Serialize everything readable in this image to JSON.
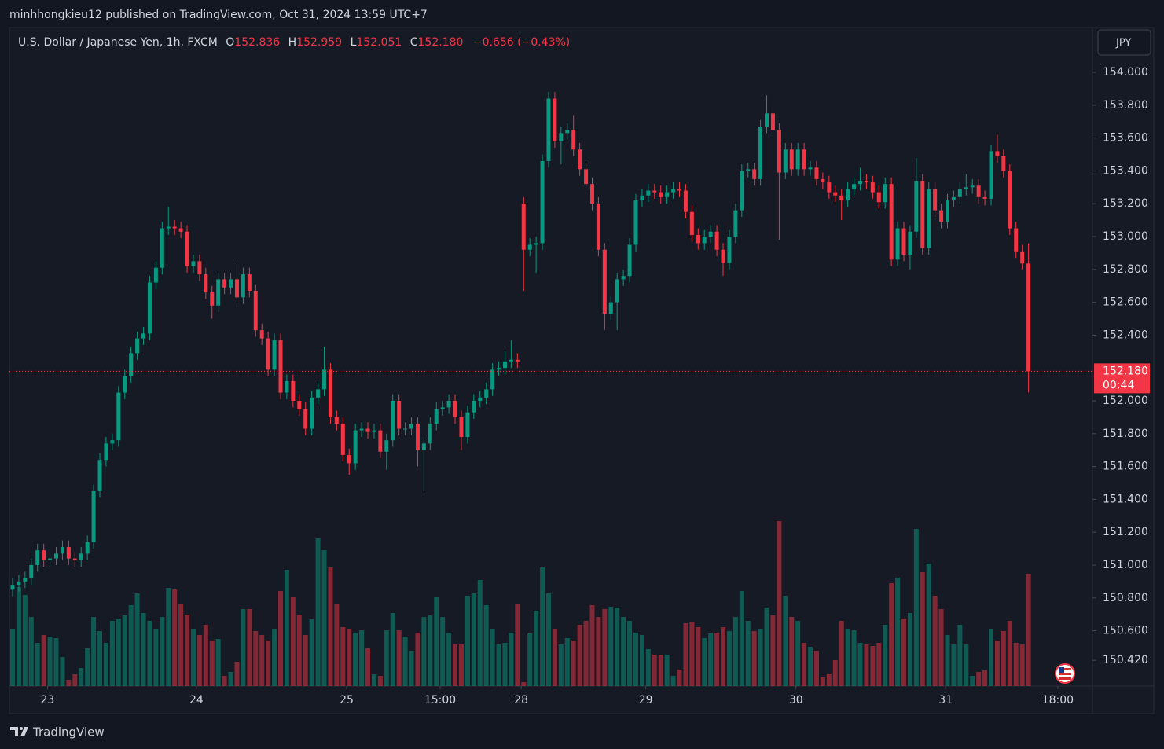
{
  "header": {
    "publisher_line": "minhhongkieu12 published on TradingView.com, Oct 31, 2024 13:59 UTC+7"
  },
  "chart_data": {
    "type": "candlestick",
    "title": "U.S. Dollar / Japanese Yen, 1h, FXCM",
    "legend_values": {
      "o_key": "O",
      "o": "152.836",
      "h_key": "H",
      "h": "152.959",
      "l_key": "L",
      "l": "152.051",
      "c_key": "C",
      "c": "152.180",
      "change": "−0.656 (−0.43%)"
    },
    "currency": "JPY",
    "open": [
      150.85,
      150.88,
      150.9,
      150.92,
      151.0,
      151.09,
      151.03,
      151.04,
      151.07,
      151.11,
      151.04,
      151.03,
      151.07,
      151.14,
      151.45,
      151.64,
      151.74,
      151.76,
      152.05,
      152.15,
      152.29,
      152.38,
      152.41,
      152.72,
      152.81,
      153.05,
      153.06,
      153.05,
      153.03,
      152.82,
      152.85,
      152.77,
      152.66,
      152.58,
      152.74,
      152.69,
      152.74,
      152.63,
      152.77,
      152.67,
      152.43,
      152.38,
      152.19,
      152.37,
      152.05,
      152.12,
      152.0,
      151.95,
      151.83,
      152.02,
      152.07,
      152.19,
      151.9,
      151.86,
      151.67,
      151.62,
      151.82,
      151.83,
      151.81,
      151.82,
      151.69,
      151.76,
      152.0,
      151.83,
      151.83,
      151.86,
      151.7,
      151.74,
      151.86,
      151.95,
      151.96,
      152.0,
      151.9,
      151.78,
      151.93,
      152.0,
      152.02,
      152.07,
      152.19,
      152.2,
      152.24,
      152.25,
      153.2,
      152.92,
      152.95,
      152.96,
      153.46,
      153.84,
      153.58,
      153.63,
      153.65,
      153.53,
      153.41,
      153.32,
      153.2,
      152.92,
      152.53,
      152.6,
      152.74,
      152.76,
      152.95,
      153.22,
      153.25,
      153.28,
      153.27,
      153.24,
      153.27,
      153.29,
      153.28,
      153.15,
      153.01,
      152.96,
      153.0,
      153.03,
      152.92,
      152.84,
      153.0,
      153.16,
      153.4,
      153.41,
      153.35,
      153.67,
      153.75,
      153.65,
      153.39,
      153.53,
      153.41,
      153.53,
      153.41,
      153.42,
      153.35,
      153.33,
      153.27,
      153.25,
      153.22,
      153.29,
      153.32,
      153.34,
      153.33,
      153.27,
      153.21,
      153.32,
      152.86,
      153.05,
      152.89,
      153.03,
      153.34,
      152.93,
      153.29,
      153.16,
      153.09,
      153.22,
      153.24,
      153.29,
      153.3,
      153.31,
      153.24,
      153.23,
      153.52,
      153.49,
      153.4,
      153.05,
      152.91,
      152.836
    ],
    "high": [
      150.92,
      150.94,
      150.96,
      151.04,
      151.13,
      151.13,
      151.08,
      151.11,
      151.15,
      151.15,
      151.08,
      151.11,
      151.18,
      151.49,
      151.68,
      151.78,
      151.8,
      152.09,
      152.19,
      152.33,
      152.42,
      152.45,
      152.76,
      152.85,
      153.09,
      153.18,
      153.1,
      153.09,
      153.07,
      152.89,
      152.89,
      152.81,
      152.7,
      152.78,
      152.78,
      152.78,
      152.84,
      152.81,
      152.81,
      152.71,
      152.47,
      152.42,
      152.41,
      152.41,
      152.16,
      152.16,
      152.04,
      151.99,
      152.06,
      152.11,
      152.33,
      152.23,
      151.94,
      151.9,
      151.71,
      151.86,
      151.87,
      151.87,
      151.86,
      151.86,
      151.8,
      152.04,
      152.04,
      151.87,
      151.9,
      151.9,
      151.78,
      151.9,
      151.99,
      152.0,
      152.04,
      152.04,
      151.94,
      151.97,
      152.04,
      152.06,
      152.11,
      152.23,
      152.24,
      152.3,
      152.37,
      152.29,
      153.24,
      152.99,
      153.0,
      153.5,
      153.88,
      153.88,
      153.67,
      153.69,
      153.74,
      153.57,
      153.45,
      153.36,
      153.24,
      152.96,
      152.64,
      152.78,
      152.8,
      152.99,
      153.26,
      153.29,
      153.32,
      153.32,
      153.31,
      153.31,
      153.33,
      153.33,
      153.32,
      153.19,
      153.05,
      153.04,
      153.07,
      153.07,
      152.96,
      153.04,
      153.2,
      153.44,
      153.45,
      153.45,
      153.71,
      153.86,
      153.79,
      153.69,
      153.57,
      153.57,
      153.57,
      153.57,
      153.46,
      153.46,
      153.39,
      153.37,
      153.31,
      153.29,
      153.33,
      153.36,
      153.42,
      153.38,
      153.37,
      153.31,
      153.36,
      153.36,
      153.09,
      153.09,
      153.07,
      153.48,
      153.38,
      153.33,
      153.33,
      153.2,
      153.26,
      153.28,
      153.33,
      153.38,
      153.35,
      153.35,
      153.28,
      153.56,
      153.62,
      153.53,
      153.44,
      153.09,
      152.95,
      152.959
    ],
    "low": [
      150.81,
      150.84,
      150.86,
      150.88,
      150.96,
      150.99,
      150.99,
      151.0,
      151.03,
      151.0,
      150.99,
      150.99,
      151.03,
      151.1,
      151.41,
      151.6,
      151.7,
      151.72,
      152.01,
      152.11,
      152.25,
      152.34,
      152.37,
      152.68,
      152.77,
      153.01,
      153.01,
      152.99,
      152.78,
      152.78,
      152.73,
      152.62,
      152.5,
      152.54,
      152.65,
      152.65,
      152.59,
      152.59,
      152.63,
      152.39,
      152.34,
      152.15,
      152.15,
      152.01,
      152.01,
      151.96,
      151.91,
      151.79,
      151.79,
      151.98,
      152.03,
      151.86,
      151.82,
      151.63,
      151.55,
      151.58,
      151.78,
      151.77,
      151.77,
      151.65,
      151.58,
      151.72,
      151.79,
      151.79,
      151.79,
      151.6,
      151.45,
      151.7,
      151.82,
      151.91,
      151.92,
      151.86,
      151.7,
      151.74,
      151.89,
      151.96,
      151.98,
      152.03,
      152.15,
      152.16,
      152.2,
      152.2,
      152.67,
      152.88,
      152.78,
      152.92,
      153.42,
      153.54,
      153.44,
      153.59,
      153.49,
      153.37,
      153.28,
      153.16,
      152.88,
      152.43,
      152.49,
      152.43,
      152.7,
      152.72,
      152.91,
      153.18,
      153.21,
      153.23,
      153.2,
      153.2,
      153.23,
      153.24,
      153.11,
      152.97,
      152.92,
      152.92,
      152.96,
      152.88,
      152.76,
      152.8,
      152.96,
      153.12,
      153.36,
      153.31,
      153.31,
      153.63,
      153.61,
      152.98,
      153.35,
      153.37,
      153.37,
      153.37,
      153.37,
      153.31,
      153.29,
      153.23,
      153.21,
      153.1,
      153.18,
      153.25,
      153.28,
      153.29,
      153.23,
      153.17,
      153.17,
      152.82,
      152.82,
      152.85,
      152.8,
      152.99,
      152.89,
      152.89,
      153.12,
      153.05,
      153.05,
      153.18,
      153.2,
      153.25,
      153.26,
      153.2,
      153.19,
      153.19,
      153.45,
      153.36,
      153.01,
      152.87,
      152.8,
      152.051
    ],
    "close": [
      150.88,
      150.9,
      150.92,
      151.0,
      151.09,
      151.03,
      151.04,
      151.07,
      151.11,
      151.04,
      151.03,
      151.07,
      151.14,
      151.45,
      151.64,
      151.74,
      151.76,
      152.05,
      152.15,
      152.29,
      152.38,
      152.41,
      152.72,
      152.81,
      153.05,
      153.06,
      153.05,
      153.03,
      152.82,
      152.85,
      152.77,
      152.66,
      152.58,
      152.74,
      152.69,
      152.74,
      152.63,
      152.77,
      152.67,
      152.43,
      152.38,
      152.19,
      152.37,
      152.05,
      152.12,
      152.0,
      151.95,
      151.83,
      152.02,
      152.07,
      152.19,
      151.9,
      151.86,
      151.67,
      151.62,
      151.82,
      151.83,
      151.81,
      151.82,
      151.69,
      151.76,
      152.0,
      151.83,
      151.83,
      151.86,
      151.7,
      151.74,
      151.86,
      151.95,
      151.96,
      152.0,
      151.9,
      151.78,
      151.93,
      152.0,
      152.02,
      152.07,
      152.19,
      152.2,
      152.24,
      152.25,
      152.24,
      152.92,
      152.95,
      152.96,
      153.46,
      153.84,
      153.58,
      153.63,
      153.65,
      153.53,
      153.41,
      153.32,
      153.2,
      152.92,
      152.53,
      152.6,
      152.74,
      152.76,
      152.95,
      153.22,
      153.25,
      153.28,
      153.27,
      153.24,
      153.27,
      153.29,
      153.28,
      153.15,
      153.01,
      152.96,
      153.0,
      153.03,
      152.92,
      152.84,
      153.0,
      153.16,
      153.4,
      153.41,
      153.35,
      153.67,
      153.75,
      153.65,
      153.39,
      153.53,
      153.41,
      153.53,
      153.41,
      153.42,
      153.35,
      153.33,
      153.27,
      153.25,
      153.22,
      153.29,
      153.32,
      153.34,
      153.33,
      153.27,
      153.21,
      153.32,
      152.86,
      153.05,
      152.89,
      153.03,
      153.34,
      152.93,
      153.29,
      153.16,
      153.09,
      153.22,
      153.24,
      153.29,
      153.3,
      153.31,
      153.24,
      153.23,
      153.52,
      153.49,
      153.4,
      153.05,
      152.91,
      152.836,
      152.18
    ],
    "volume": [
      73,
      126,
      116,
      88,
      55,
      65,
      63,
      61,
      37,
      8,
      15,
      23,
      48,
      88,
      70,
      55,
      83,
      86,
      90,
      103,
      118,
      93,
      83,
      73,
      88,
      125,
      123,
      105,
      91,
      73,
      65,
      78,
      58,
      60,
      13,
      18,
      31,
      98,
      98,
      70,
      65,
      58,
      73,
      121,
      148,
      113,
      91,
      65,
      85,
      188,
      173,
      151,
      105,
      75,
      73,
      68,
      71,
      48,
      15,
      13,
      71,
      93,
      71,
      63,
      45,
      68,
      88,
      90,
      113,
      88,
      68,
      53,
      53,
      115,
      118,
      135,
      103,
      73,
      53,
      55,
      68,
      105,
      5,
      67,
      96,
      151,
      118,
      73,
      53,
      61,
      58,
      78,
      83,
      103,
      88,
      98,
      101,
      100,
      88,
      83,
      68,
      65,
      47,
      40,
      40,
      40,
      13,
      21,
      80,
      81,
      75,
      61,
      67,
      68,
      75,
      70,
      88,
      121,
      83,
      70,
      73,
      100,
      90,
      210,
      115,
      88,
      83,
      55,
      50,
      45,
      11,
      16,
      33,
      83,
      73,
      71,
      55,
      53,
      51,
      55,
      78,
      131,
      138,
      86,
      93,
      200,
      145,
      156,
      115,
      98,
      65,
      53,
      78,
      53,
      13,
      18,
      20,
      73,
      58,
      70,
      83,
      55,
      53,
      143
    ],
    "up_color": "#089981",
    "down_color": "#f23645",
    "ylim": [
      150.263,
      154.273
    ],
    "yticks": [
      {
        "value": 154,
        "label": "154.000"
      },
      {
        "value": 153.8,
        "label": "153.800"
      },
      {
        "value": 153.6,
        "label": "153.600"
      },
      {
        "value": 153.4,
        "label": "153.400"
      },
      {
        "value": 153.2,
        "label": "153.200"
      },
      {
        "value": 153,
        "label": "153.000"
      },
      {
        "value": 152.8,
        "label": "152.800"
      },
      {
        "value": 152.6,
        "label": "152.600"
      },
      {
        "value": 152.4,
        "label": "152.400"
      },
      {
        "value": 152,
        "label": "152.000"
      },
      {
        "value": 151.8,
        "label": "151.800"
      },
      {
        "value": 151.6,
        "label": "151.600"
      },
      {
        "value": 151.4,
        "label": "151.400"
      },
      {
        "value": 151.2,
        "label": "151.200"
      },
      {
        "value": 151,
        "label": "151.000"
      },
      {
        "value": 150.8,
        "label": "150.800"
      },
      {
        "value": 150.6,
        "label": "150.600"
      },
      {
        "value": 150.42,
        "label": "150.420"
      }
    ],
    "xticks": [
      {
        "value": 5.6,
        "label": "23"
      },
      {
        "value": 29.5,
        "label": "24"
      },
      {
        "value": 53.6,
        "label": "25"
      },
      {
        "value": 68.6,
        "label": "15:00"
      },
      {
        "value": 81.6,
        "label": "28"
      },
      {
        "value": 101.6,
        "label": "29"
      },
      {
        "value": 125.7,
        "label": "30"
      },
      {
        "value": 149.7,
        "label": "31"
      },
      {
        "value": 167.7,
        "label": "18:00"
      }
    ],
    "last_price_label": "152.180",
    "countdown": "00:44"
  },
  "footer": {
    "brand": "TradingView"
  }
}
